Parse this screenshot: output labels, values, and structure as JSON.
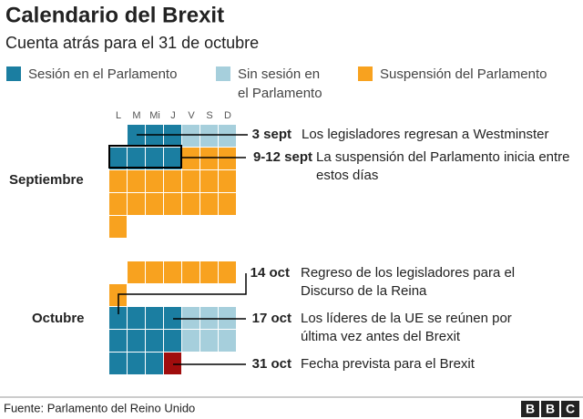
{
  "header": {
    "title": "Calendario del Brexit",
    "subtitle": "Cuenta atrás para el 31 de octubre"
  },
  "legend": [
    {
      "lines": [
        "Sesión en el Parlamento"
      ],
      "color": "#1b7ea1"
    },
    {
      "lines": [
        "Sin sesión en",
        "el Parlamento"
      ],
      "color": "#a6cfdc"
    },
    {
      "lines": [
        "Suspensión del Parlamento"
      ],
      "color": "#f8a21f"
    }
  ],
  "weekdays": [
    "L",
    "M",
    "Mi",
    "J",
    "V",
    "S",
    "D"
  ],
  "months": [
    "Septiembre",
    "Octubre"
  ],
  "annotations": [
    {
      "date": "3 sept",
      "lines": [
        "Los legisladores regresan a Westminster"
      ]
    },
    {
      "date": "9-12 sept",
      "lines": [
        "La suspensión del Parlamento inicia entre",
        "estos días"
      ]
    },
    {
      "date": "14 oct",
      "lines": [
        "Regreso de los legisladores para el",
        "Discurso de la Reina"
      ]
    },
    {
      "date": "17 oct",
      "lines": [
        "Los líderes de la UE se reúnen por",
        "última vez antes del Brexit"
      ]
    },
    {
      "date": "31 oct",
      "lines": [
        "Fecha prevista para el Brexit"
      ]
    }
  ],
  "footer": {
    "source": "Fuente: Parlamento del Reino Unido",
    "logo": [
      "B",
      "B",
      "C"
    ]
  }
}
